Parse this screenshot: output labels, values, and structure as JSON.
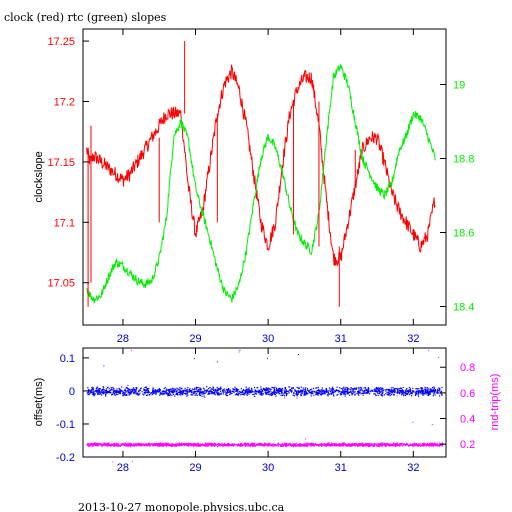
{
  "title": "clock (red) rtc (green) slopes",
  "footer": "2013-10-27 monopole.physics.ubc.ca",
  "colors": {
    "clock": "#ff0000",
    "rtc": "#00ee00",
    "offset": "#0000ff",
    "rndtrip": "#ff00ff",
    "axis_bottom": "#0000cc"
  },
  "chart_data": [
    {
      "type": "line",
      "title": "clock (red) rtc (green) slopes",
      "ylabel": "clockslope",
      "xlim": [
        27.45,
        32.45
      ],
      "ylim_left": [
        17.015,
        17.26
      ],
      "ylim_right": [
        18.35,
        19.15
      ],
      "xticks": [
        "28",
        "29",
        "30",
        "31",
        "32"
      ],
      "yticks_left": [
        "17.25",
        "17.2",
        "17.15",
        "17.1",
        "17.05"
      ],
      "yticks_left_values": [
        17.25,
        17.2,
        17.15,
        17.1,
        17.05
      ],
      "yticks_right": [
        "19",
        "18.8",
        "18.6",
        "18.4"
      ],
      "yticks_right_values": [
        19.0,
        18.8,
        18.6,
        18.4
      ],
      "grid": false,
      "series": [
        {
          "name": "clock",
          "axis": "left",
          "x": [
            27.5,
            27.55,
            27.6,
            27.7,
            27.8,
            27.9,
            28.0,
            28.1,
            28.2,
            28.3,
            28.4,
            28.5,
            28.6,
            28.7,
            28.8,
            28.9,
            29.0,
            29.1,
            29.2,
            29.3,
            29.4,
            29.5,
            29.6,
            29.7,
            29.8,
            29.9,
            30.0,
            30.1,
            30.2,
            30.3,
            30.4,
            30.5,
            30.6,
            30.7,
            30.8,
            30.9,
            31.0,
            31.1,
            31.2,
            31.3,
            31.4,
            31.5,
            31.6,
            31.7,
            31.8,
            31.9,
            32.0,
            32.1,
            32.2,
            32.3
          ],
          "values": [
            17.16,
            17.15,
            17.155,
            17.15,
            17.145,
            17.14,
            17.135,
            17.14,
            17.15,
            17.16,
            17.17,
            17.18,
            17.19,
            17.19,
            17.19,
            17.13,
            17.09,
            17.11,
            17.15,
            17.19,
            17.215,
            17.225,
            17.21,
            17.18,
            17.14,
            17.1,
            17.08,
            17.1,
            17.15,
            17.19,
            17.21,
            17.22,
            17.22,
            17.18,
            17.12,
            17.07,
            17.07,
            17.1,
            17.13,
            17.16,
            17.17,
            17.17,
            17.15,
            17.125,
            17.11,
            17.1,
            17.09,
            17.08,
            17.09,
            17.12
          ]
        },
        {
          "name": "rtc",
          "axis": "right",
          "x": [
            27.5,
            27.55,
            27.6,
            27.7,
            27.8,
            27.9,
            28.0,
            28.1,
            28.2,
            28.3,
            28.4,
            28.5,
            28.6,
            28.7,
            28.8,
            28.9,
            29.0,
            29.1,
            29.2,
            29.3,
            29.4,
            29.5,
            29.6,
            29.7,
            29.8,
            29.9,
            30.0,
            30.1,
            30.2,
            30.3,
            30.4,
            30.5,
            30.6,
            30.7,
            30.8,
            30.9,
            31.0,
            31.1,
            31.2,
            31.3,
            31.4,
            31.5,
            31.6,
            31.7,
            31.8,
            31.9,
            32.0,
            32.1,
            32.2,
            32.3
          ],
          "values": [
            18.45,
            18.43,
            18.42,
            18.43,
            18.48,
            18.52,
            18.51,
            18.49,
            18.47,
            18.46,
            18.47,
            18.53,
            18.64,
            18.86,
            18.9,
            18.85,
            18.72,
            18.65,
            18.58,
            18.5,
            18.44,
            18.42,
            18.46,
            18.55,
            18.68,
            18.8,
            18.86,
            18.83,
            18.76,
            18.67,
            18.6,
            18.57,
            18.55,
            18.65,
            18.85,
            19.02,
            19.05,
            19.0,
            18.9,
            18.8,
            18.76,
            18.72,
            18.7,
            18.73,
            18.82,
            18.86,
            18.92,
            18.91,
            18.86,
            18.8
          ]
        }
      ]
    },
    {
      "type": "scatter",
      "ylabel_left": "offset(ms)",
      "ylabel_right": "rnd-trip(ms)",
      "xlim": [
        27.45,
        32.45
      ],
      "ylim_left": [
        -0.2,
        0.13
      ],
      "ylim_right": [
        0.1,
        0.95
      ],
      "xticks": [
        "28",
        "29",
        "30",
        "31",
        "32"
      ],
      "yticks_left": [
        "0.1",
        "0",
        "-0.1",
        "-0.2"
      ],
      "yticks_left_values": [
        0.1,
        0.0,
        -0.1,
        -0.2
      ],
      "yticks_right": [
        "0.8",
        "0.6",
        "0.4",
        "0.2"
      ],
      "yticks_right_values": [
        0.8,
        0.6,
        0.4,
        0.2
      ],
      "grid": false,
      "series": [
        {
          "name": "offset",
          "axis": "left",
          "x_range": [
            27.5,
            32.4
          ],
          "center": 0.0,
          "spread": 0.015
        },
        {
          "name": "rnd-trip",
          "axis": "right",
          "x_range": [
            27.5,
            32.4
          ],
          "center": 0.2,
          "spread": 0.015
        }
      ]
    }
  ]
}
